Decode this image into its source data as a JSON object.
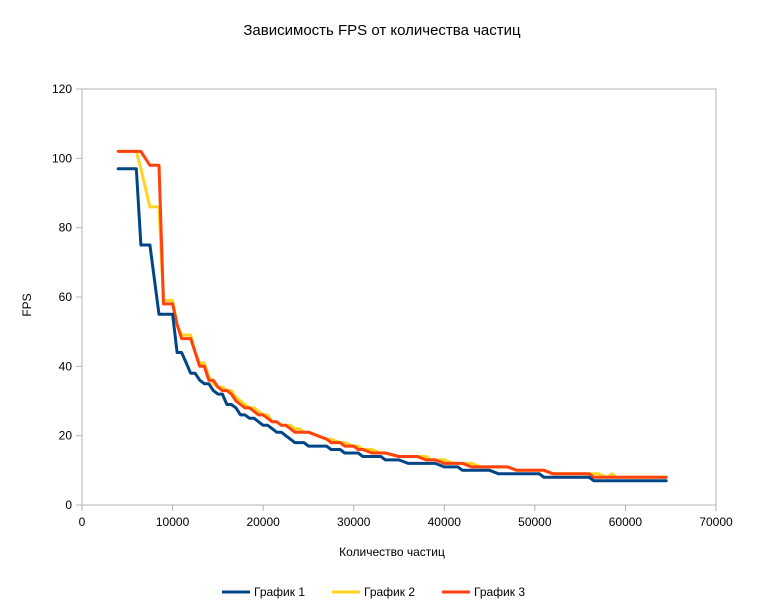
{
  "chart_data": {
    "type": "line",
    "title": "Зависимость FPS от количества частиц",
    "xlabel": "Количество частиц",
    "ylabel": "FPS",
    "xlim": [
      0,
      70000
    ],
    "ylim": [
      0,
      120
    ],
    "xticks": [
      0,
      10000,
      20000,
      30000,
      40000,
      50000,
      60000,
      70000
    ],
    "yticks": [
      0,
      20,
      40,
      60,
      80,
      100,
      120
    ],
    "grid": false,
    "legend_position": "bottom",
    "series": [
      {
        "name": "График 1",
        "color": "#004586",
        "x": [
          4000,
          6000,
          6500,
          7500,
          8500,
          9000,
          10000,
          10500,
          11000,
          11500,
          12000,
          12500,
          13000,
          13500,
          14000,
          14500,
          15000,
          15500,
          16000,
          16500,
          17000,
          17500,
          18000,
          18500,
          19000,
          19500,
          20000,
          20500,
          21000,
          21500,
          22000,
          22500,
          23000,
          23500,
          24000,
          24500,
          25000,
          26000,
          27000,
          27500,
          28500,
          29000,
          30000,
          30500,
          31000,
          32000,
          33000,
          33500,
          35000,
          36000,
          37000,
          38000,
          38500,
          39000,
          40000,
          41000,
          41500,
          42000,
          43000,
          44000,
          45000,
          46000,
          47000,
          48000,
          49000,
          50000,
          50500,
          51000,
          52000,
          53000,
          54000,
          55000,
          56000,
          56500,
          58000,
          60000,
          62000,
          64500
        ],
        "y": [
          97,
          97,
          75,
          75,
          55,
          55,
          55,
          44,
          44,
          41,
          38,
          38,
          36,
          35,
          35,
          33,
          32,
          32,
          29,
          29,
          28,
          26,
          26,
          25,
          25,
          24,
          23,
          23,
          22,
          21,
          21,
          20,
          19,
          18,
          18,
          18,
          17,
          17,
          17,
          16,
          16,
          15,
          15,
          15,
          14,
          14,
          14,
          13,
          13,
          12,
          12,
          12,
          12,
          12,
          11,
          11,
          11,
          10,
          10,
          10,
          10,
          9,
          9,
          9,
          9,
          9,
          9,
          8,
          8,
          8,
          8,
          8,
          8,
          7,
          7,
          7,
          7,
          7
        ]
      },
      {
        "name": "График 2",
        "color": "#ffd320",
        "x": [
          4000,
          6000,
          6500,
          7500,
          8500,
          9000,
          10000,
          10500,
          11000,
          11500,
          12000,
          12500,
          13000,
          13500,
          14000,
          14500,
          15000,
          15500,
          16000,
          16500,
          17000,
          17500,
          18000,
          18500,
          19000,
          19500,
          20000,
          20500,
          21000,
          21500,
          22000,
          22500,
          23000,
          23500,
          24000,
          24500,
          25000,
          26000,
          27000,
          27500,
          28500,
          29000,
          30000,
          30500,
          31000,
          32000,
          33000,
          33500,
          35000,
          36000,
          37000,
          38000,
          38500,
          39000,
          40000,
          41000,
          41500,
          42000,
          43000,
          44000,
          45000,
          46000,
          47000,
          48000,
          49000,
          50000,
          50500,
          51000,
          52000,
          53000,
          54000,
          55000,
          56000,
          56500,
          57000,
          58000,
          58500,
          59000,
          60000,
          62000,
          64500
        ],
        "y": [
          102,
          102,
          97,
          86,
          86,
          59,
          59,
          52,
          49,
          49,
          49,
          44,
          41,
          41,
          37,
          35,
          34,
          34,
          33,
          33,
          31,
          30,
          29,
          28,
          28,
          27,
          26,
          26,
          24,
          24,
          23,
          23,
          23,
          22,
          22,
          21,
          21,
          20,
          19,
          19,
          18,
          18,
          17,
          17,
          16,
          16,
          15,
          15,
          14,
          14,
          14,
          14,
          13,
          13,
          13,
          12,
          12,
          12,
          12,
          11,
          11,
          11,
          11,
          10,
          10,
          10,
          10,
          10,
          9,
          9,
          9,
          9,
          9,
          9,
          9,
          8,
          9,
          8,
          8,
          8,
          8
        ]
      },
      {
        "name": "График 3",
        "color": "#ff420e",
        "x": [
          4000,
          6000,
          6500,
          7500,
          8500,
          9000,
          10000,
          10500,
          11000,
          11500,
          12000,
          12500,
          13000,
          13500,
          14000,
          14500,
          15000,
          15500,
          16000,
          16500,
          17000,
          17500,
          18000,
          18500,
          19000,
          19500,
          20000,
          20500,
          21000,
          21500,
          22000,
          22500,
          23000,
          23500,
          24000,
          24500,
          25000,
          26000,
          27000,
          27500,
          28500,
          29000,
          30000,
          30500,
          31000,
          32000,
          33000,
          33500,
          35000,
          36000,
          37000,
          38000,
          38500,
          39000,
          40000,
          41000,
          41500,
          42000,
          43000,
          44000,
          45000,
          46000,
          47000,
          48000,
          49000,
          50000,
          50500,
          51000,
          52000,
          53000,
          54000,
          55000,
          56000,
          56500,
          57000,
          58000,
          58500,
          59000,
          60000,
          62000,
          64500
        ],
        "y": [
          102,
          102,
          102,
          98,
          98,
          58,
          58,
          52,
          48,
          48,
          48,
          44,
          40,
          40,
          36,
          36,
          34,
          33,
          33,
          32,
          30,
          29,
          28,
          28,
          27,
          26,
          26,
          25,
          24,
          24,
          23,
          23,
          22,
          21,
          21,
          21,
          21,
          20,
          19,
          18,
          18,
          17,
          17,
          16,
          16,
          15,
          15,
          15,
          14,
          14,
          14,
          13,
          13,
          13,
          12,
          12,
          12,
          12,
          11,
          11,
          11,
          11,
          11,
          10,
          10,
          10,
          10,
          10,
          9,
          9,
          9,
          9,
          9,
          8,
          8,
          8,
          8,
          8,
          8,
          8,
          8
        ]
      }
    ]
  }
}
